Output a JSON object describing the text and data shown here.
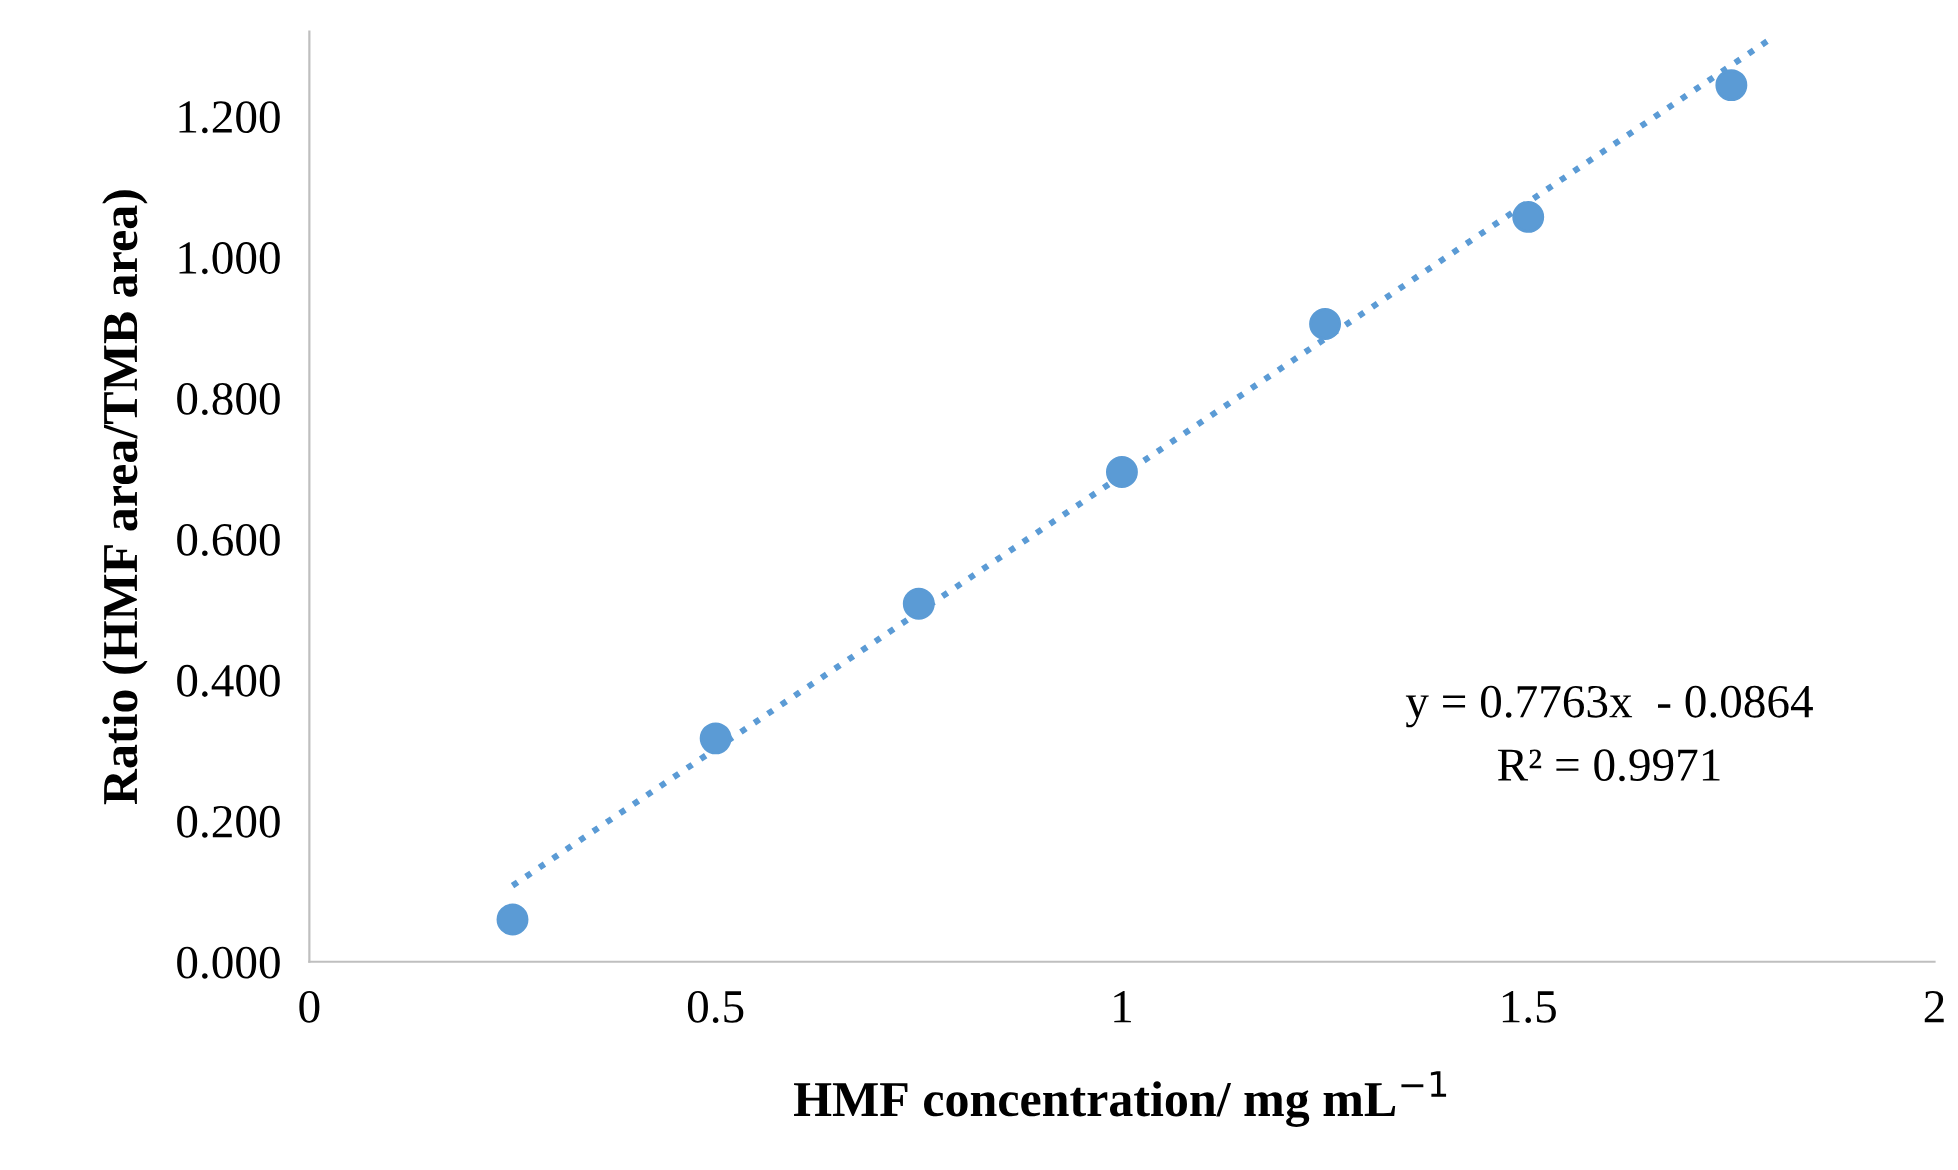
{
  "chart_data": {
    "type": "scatter",
    "xlabel": "HMF concentration/ mg mL$^{−1}$",
    "ylabel": "Ratio (HMF area/TMB area)",
    "x": [
      0.25,
      0.5,
      0.75,
      1.0,
      1.25,
      1.5,
      1.75
    ],
    "series": [
      {
        "color": "#5b9bd5",
        "marker": "circle",
        "values": [
          0.06,
          0.317,
          0.508,
          0.695,
          0.905,
          1.057,
          1.244
        ]
      },
      {
        "type": "line",
        "color": "#5b9bd5",
        "line_style": "dotted",
        "marker": "none",
        "x": [
          0.25,
          1.8
        ],
        "values": [
          0.108,
          1.311
        ]
      }
    ],
    "annotations": [
      "y = 0.7763x  - 0.0864",
      "R² = 0.9971"
    ],
    "xlim": [
      0,
      2
    ],
    "xticks": [
      0,
      0.5,
      1,
      1.5,
      2
    ],
    "ylim": [
      0,
      1.32
    ],
    "yticks": [
      {
        "value": 0,
        "label": "0.000"
      },
      {
        "value": 0.2,
        "label": "0.200"
      },
      {
        "value": 0.4,
        "label": "0.400"
      },
      {
        "value": 0.6,
        "label": "0.600"
      },
      {
        "value": 0.8,
        "label": "0.800"
      },
      {
        "value": 1.0,
        "label": "1.000"
      },
      {
        "value": 1.2,
        "label": "1.200"
      }
    ],
    "grid": false,
    "legend": false
  }
}
